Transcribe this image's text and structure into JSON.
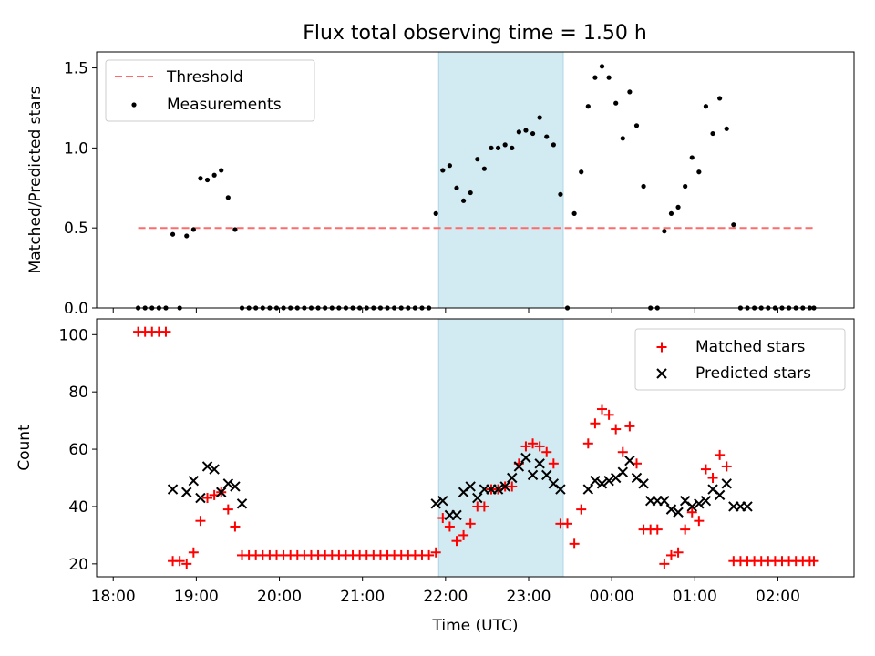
{
  "figure": {
    "title": "Flux total observing time = 1.50 h"
  },
  "colors": {
    "threshold": "#ff6b6b",
    "measurements": "#000000",
    "matched": "#ff0000",
    "predicted": "#000000",
    "highlight": "#add8e6"
  },
  "chart_data": [
    {
      "type": "scatter",
      "panel": "top",
      "title": "Flux total observing time = 1.50 h",
      "ylabel": "Matched/Predicted stars",
      "xlabel": "",
      "ylim": [
        0,
        1.6
      ],
      "yticks": [
        0.0,
        0.5,
        1.0,
        1.5
      ],
      "ytick_labels": [
        "0.0",
        "0.5",
        "1.0",
        "1.5"
      ],
      "grid": false,
      "legend": "upper-left",
      "highlight_span": [
        "21:55",
        "23:25"
      ],
      "threshold": {
        "name": "Threshold",
        "value": 0.5,
        "x_range": [
          "18:18",
          "02:26"
        ]
      },
      "series": [
        {
          "name": "Measurements",
          "x": [
            "18:18",
            "18:23",
            "18:28",
            "18:33",
            "18:38",
            "18:43",
            "18:48",
            "18:53",
            "18:58",
            "19:03",
            "19:08",
            "19:13",
            "19:18",
            "19:23",
            "19:28",
            "19:33",
            "19:38",
            "19:43",
            "19:48",
            "19:53",
            "19:58",
            "20:03",
            "20:08",
            "20:13",
            "20:18",
            "20:23",
            "20:28",
            "20:33",
            "20:38",
            "20:43",
            "20:48",
            "20:53",
            "20:58",
            "21:03",
            "21:08",
            "21:13",
            "21:18",
            "21:23",
            "21:28",
            "21:33",
            "21:38",
            "21:43",
            "21:48",
            "21:53",
            "21:58",
            "22:03",
            "22:08",
            "22:13",
            "22:18",
            "22:23",
            "22:28",
            "22:33",
            "22:38",
            "22:43",
            "22:48",
            "22:53",
            "22:58",
            "23:03",
            "23:08",
            "23:13",
            "23:18",
            "23:23",
            "23:28",
            "23:33",
            "23:38",
            "23:43",
            "23:48",
            "23:53",
            "23:58",
            "00:03",
            "00:08",
            "00:13",
            "00:18",
            "00:23",
            "00:28",
            "00:33",
            "00:38",
            "00:43",
            "00:48",
            "00:53",
            "00:58",
            "01:03",
            "01:08",
            "01:13",
            "01:18",
            "01:23",
            "01:28",
            "01:33",
            "01:38",
            "01:43",
            "01:48",
            "01:53",
            "01:58",
            "02:03",
            "02:08",
            "02:13",
            "02:18",
            "02:23",
            "02:26"
          ],
          "y": [
            0,
            0,
            0,
            0,
            0,
            0.46,
            0,
            0.45,
            0.49,
            0.81,
            0.8,
            0.83,
            0.86,
            0.69,
            0.49,
            0,
            0,
            0,
            0,
            0,
            0,
            0,
            0,
            0,
            0,
            0,
            0,
            0,
            0,
            0,
            0,
            0,
            0,
            0,
            0,
            0,
            0,
            0,
            0,
            0,
            0,
            0,
            0,
            0.59,
            0.86,
            0.89,
            0.75,
            0.67,
            0.72,
            0.93,
            0.87,
            1.0,
            1.0,
            1.02,
            1.0,
            1.1,
            1.11,
            1.09,
            1.19,
            1.07,
            1.02,
            0.71,
            0,
            0.59,
            0.85,
            1.26,
            1.44,
            1.51,
            1.44,
            1.28,
            1.06,
            1.35,
            1.14,
            0.76,
            0,
            0,
            0.48,
            0.59,
            0.63,
            0.76,
            0.94,
            0.85,
            1.26,
            1.09,
            1.31,
            1.12,
            0.52,
            0,
            0,
            0,
            0,
            0,
            0,
            0,
            0,
            0,
            0,
            0,
            0
          ]
        }
      ]
    },
    {
      "type": "scatter",
      "panel": "bottom",
      "ylabel": "Count",
      "xlabel": "Time (UTC)",
      "xlim": [
        "17:48",
        "02:55"
      ],
      "xticks": [
        "18:00",
        "19:00",
        "20:00",
        "21:00",
        "22:00",
        "23:00",
        "00:00",
        "01:00",
        "02:00"
      ],
      "ylim": [
        15.5,
        105.5
      ],
      "yticks": [
        20,
        40,
        60,
        80,
        100
      ],
      "grid": false,
      "legend": "upper-right",
      "highlight_span": [
        "21:55",
        "23:25"
      ],
      "series": [
        {
          "name": "Matched stars",
          "marker": "+",
          "x": [
            "18:18",
            "18:23",
            "18:28",
            "18:33",
            "18:38",
            "18:43",
            "18:48",
            "18:53",
            "18:58",
            "19:03",
            "19:08",
            "19:13",
            "19:18",
            "19:23",
            "19:28",
            "19:33",
            "19:38",
            "19:43",
            "19:48",
            "19:53",
            "19:58",
            "20:03",
            "20:08",
            "20:13",
            "20:18",
            "20:23",
            "20:28",
            "20:33",
            "20:38",
            "20:43",
            "20:48",
            "20:53",
            "20:58",
            "21:03",
            "21:08",
            "21:13",
            "21:18",
            "21:23",
            "21:28",
            "21:33",
            "21:38",
            "21:43",
            "21:48",
            "21:53",
            "21:58",
            "22:03",
            "22:08",
            "22:13",
            "22:18",
            "22:23",
            "22:28",
            "22:33",
            "22:38",
            "22:43",
            "22:48",
            "22:53",
            "22:58",
            "23:03",
            "23:08",
            "23:13",
            "23:18",
            "23:23",
            "23:28",
            "23:33",
            "23:38",
            "23:43",
            "23:48",
            "23:53",
            "23:58",
            "00:03",
            "00:08",
            "00:13",
            "00:18",
            "00:23",
            "00:28",
            "00:33",
            "00:38",
            "00:43",
            "00:48",
            "00:53",
            "00:58",
            "01:03",
            "01:08",
            "01:13",
            "01:18",
            "01:23",
            "01:28",
            "01:33",
            "01:38",
            "01:43",
            "01:48",
            "01:53",
            "01:58",
            "02:03",
            "02:08",
            "02:13",
            "02:18",
            "02:23",
            "02:26"
          ],
          "y": [
            101,
            101,
            101,
            101,
            101,
            21,
            21,
            20,
            24,
            35,
            43,
            44,
            45,
            39,
            33,
            23,
            23,
            23,
            23,
            23,
            23,
            23,
            23,
            23,
            23,
            23,
            23,
            23,
            23,
            23,
            23,
            23,
            23,
            23,
            23,
            23,
            23,
            23,
            23,
            23,
            23,
            23,
            23,
            24,
            36,
            33,
            28,
            30,
            34,
            40,
            40,
            46,
            46,
            47,
            47,
            55,
            61,
            62,
            61,
            59,
            55,
            34,
            34,
            27,
            39,
            62,
            69,
            74,
            72,
            67,
            59,
            68,
            55,
            32,
            32,
            32,
            20,
            23,
            24,
            32,
            38,
            35,
            53,
            50,
            58,
            54,
            21,
            21,
            21,
            21,
            21,
            21,
            21,
            21,
            21,
            21,
            21,
            21,
            21
          ]
        },
        {
          "name": "Predicted stars",
          "marker": "x",
          "x": [
            "18:43",
            "18:53",
            "18:58",
            "19:03",
            "19:08",
            "19:13",
            "19:18",
            "19:23",
            "19:28",
            "19:33",
            "21:53",
            "21:58",
            "22:03",
            "22:08",
            "22:13",
            "22:18",
            "22:23",
            "22:28",
            "22:33",
            "22:38",
            "22:43",
            "22:48",
            "22:53",
            "22:58",
            "23:03",
            "23:08",
            "23:13",
            "23:18",
            "23:23",
            "23:43",
            "23:48",
            "23:53",
            "23:58",
            "00:03",
            "00:08",
            "00:13",
            "00:18",
            "00:23",
            "00:28",
            "00:33",
            "00:38",
            "00:43",
            "00:48",
            "00:53",
            "00:58",
            "01:03",
            "01:08",
            "01:13",
            "01:18",
            "01:23",
            "01:28",
            "01:33",
            "01:38"
          ],
          "y": [
            46,
            45,
            49,
            43,
            54,
            53,
            45,
            48,
            47,
            41,
            41,
            42,
            37,
            37,
            45,
            47,
            43,
            46,
            46,
            46,
            47,
            50,
            54,
            57,
            51,
            55,
            51,
            48,
            46,
            46,
            49,
            48,
            49,
            50,
            52,
            56,
            50,
            48,
            42,
            42,
            42,
            39,
            38,
            42,
            40,
            41,
            42,
            46,
            44,
            48,
            40,
            40,
            40
          ]
        }
      ]
    }
  ]
}
